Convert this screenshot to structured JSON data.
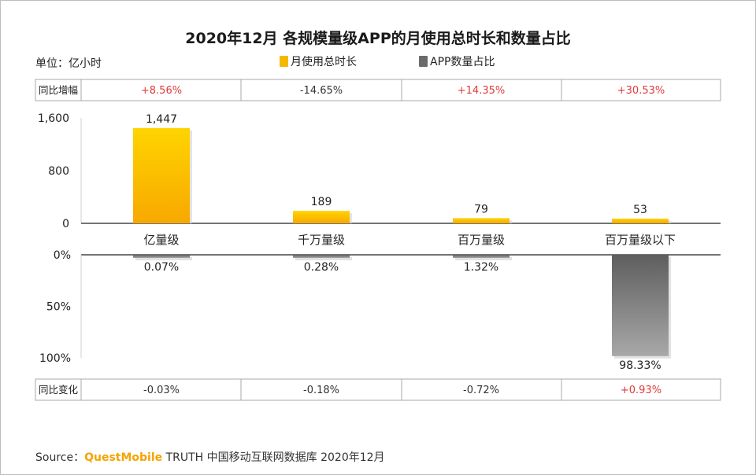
{
  "title": "2020年12月 各规模量级APP的月使用总时长和数量占比",
  "unit_label": "单位：亿小时",
  "legend": [
    {
      "label": "月使用总时长",
      "color": "#f5b800"
    },
    {
      "label": "APP数量占比",
      "color": "#6b6b6b"
    }
  ],
  "top_row": {
    "label": "同比增幅",
    "values": [
      "+8.56%",
      "-14.65%",
      "+14.35%",
      "+30.53%"
    ],
    "colors": [
      "#e03a3a",
      "#333333",
      "#e03a3a",
      "#e03a3a"
    ]
  },
  "bottom_row": {
    "label": "同比变化",
    "values": [
      "-0.03%",
      "-0.18%",
      "-0.72%",
      "+0.93%"
    ],
    "colors": [
      "#333333",
      "#333333",
      "#333333",
      "#e03a3a"
    ]
  },
  "chart_data": {
    "type": "bar",
    "categories": [
      "亿量级",
      "千万量级",
      "百万量级",
      "百万量级以下"
    ],
    "series": [
      {
        "name": "月使用总时长",
        "values": [
          1447,
          189,
          79,
          53
        ],
        "labels": [
          "1,447",
          "189",
          "79",
          "53"
        ],
        "color": "#f5b800"
      },
      {
        "name": "APP数量占比",
        "values": [
          0.07,
          0.28,
          1.32,
          98.33
        ],
        "labels": [
          "0.07%",
          "0.28%",
          "1.32%",
          "98.33%"
        ],
        "color": "#6b6b6b"
      }
    ],
    "upper_axis": {
      "ticks": [
        "1,600",
        "800",
        "0"
      ],
      "range": [
        0,
        1600
      ]
    },
    "lower_axis": {
      "ticks": [
        "0%",
        "50%",
        "100%"
      ],
      "range": [
        0,
        100
      ]
    }
  },
  "source": {
    "prefix": "Source：",
    "brand": "QuestMobile",
    "rest": " TRUTH 中国移动互联网数据库 2020年12月"
  }
}
